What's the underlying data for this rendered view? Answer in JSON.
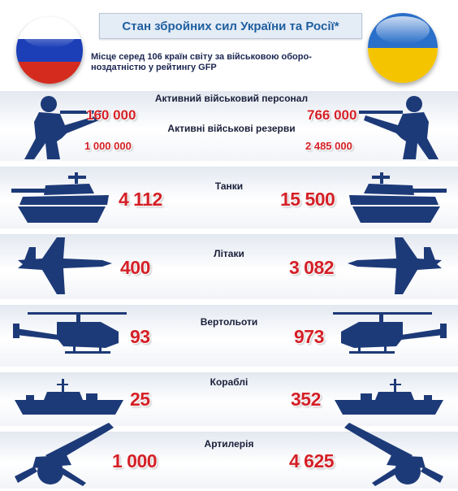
{
  "header": {
    "title": "Стан збройних сил України та Росії*",
    "subtitle": "Місце серед 106 країн світу за військовою оборо-\nноздатністю у рейтингу GFP"
  },
  "flags": {
    "left": {
      "icon": "russia-flag-icon",
      "colors": [
        "#ffffff",
        "#1c3fb8",
        "#d52b1e"
      ]
    },
    "right": {
      "icon": "ukraine-flag-icon",
      "colors": [
        "#2a6fc9",
        "#f5c400"
      ]
    }
  },
  "rows": {
    "personnel": {
      "label": "Активний військовий персонал",
      "left": "160 000",
      "right": "766 000",
      "icon": "soldier-icon"
    },
    "reserves": {
      "label": "Активні військові резерви",
      "left": "1 000 000",
      "right": "2 485 000"
    },
    "tanks": {
      "label": "Танки",
      "left": "4 112",
      "right": "15 500",
      "icon": "tank-icon"
    },
    "aircraft": {
      "label": "Літаки",
      "left": "400",
      "right": "3 082",
      "icon": "fighter-jet-icon"
    },
    "helicopters": {
      "label": "Вертольоти",
      "left": "93",
      "right": "973",
      "icon": "helicopter-icon"
    },
    "ships": {
      "label": "Кораблі",
      "left": "25",
      "right": "352",
      "icon": "warship-icon"
    },
    "artillery": {
      "label": "Артилерія",
      "left": "1 000",
      "right": "4 625",
      "icon": "howitzer-icon"
    }
  },
  "colors": {
    "silhouette": "#1d3a78",
    "numbers": "#d42027",
    "title": "#1f5f9f"
  }
}
